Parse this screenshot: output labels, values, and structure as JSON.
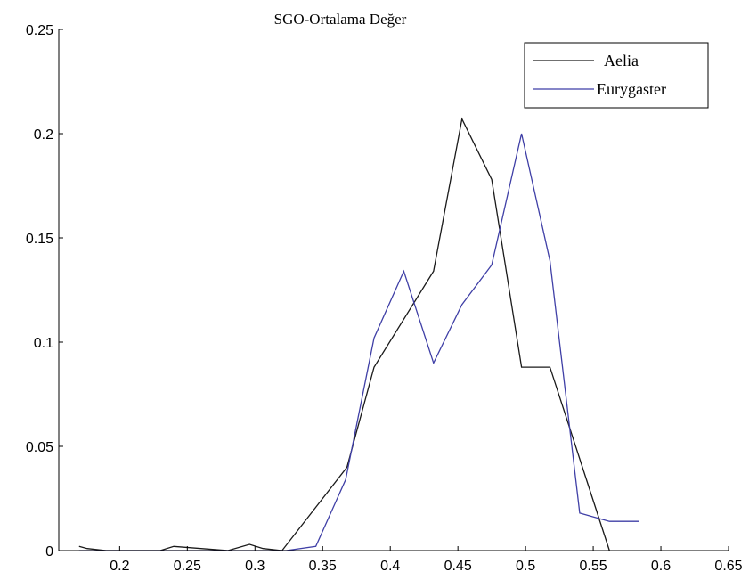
{
  "chart_data": {
    "type": "line",
    "title": "SGO-Ortalama Değer",
    "xlabel": "",
    "ylabel": "",
    "xlim": [
      0.155,
      0.65
    ],
    "ylim": [
      0,
      0.25
    ],
    "xticks": [
      0.2,
      0.25,
      0.3,
      0.35,
      0.4,
      0.45,
      0.5,
      0.55,
      0.6,
      0.65
    ],
    "xtick_labels": [
      "0.2",
      "0.25",
      "0.3",
      "0.35",
      "0.4",
      "0.45",
      "0.5",
      "0.55",
      "0.6",
      "0.65"
    ],
    "yticks": [
      0,
      0.05,
      0.1,
      0.15,
      0.2,
      0.25
    ],
    "ytick_labels": [
      "0",
      "0.05",
      "0.1",
      "0.15",
      "0.2",
      "0.25"
    ],
    "grid": false,
    "legend_position": "top-right",
    "series": [
      {
        "name": "Aelia",
        "color": "#1a1a1a",
        "x": [
          0.17,
          0.176,
          0.19,
          0.23,
          0.24,
          0.28,
          0.296,
          0.306,
          0.32,
          0.368,
          0.388,
          0.432,
          0.453,
          0.475,
          0.497,
          0.518,
          0.54,
          0.562
        ],
        "y": [
          0.002,
          0.001,
          0.0,
          0.0,
          0.002,
          0.0,
          0.003,
          0.001,
          0.0,
          0.04,
          0.088,
          0.134,
          0.207,
          0.178,
          0.088,
          0.088,
          0.044,
          0.0
        ]
      },
      {
        "name": "Eurygaster",
        "color": "#3f3fa6",
        "x": [
          0.17,
          0.3,
          0.323,
          0.345,
          0.367,
          0.388,
          0.41,
          0.432,
          0.453,
          0.475,
          0.497,
          0.518,
          0.54,
          0.562,
          0.584
        ],
        "y": [
          0.0,
          0.0,
          0.0,
          0.002,
          0.034,
          0.102,
          0.134,
          0.09,
          0.118,
          0.137,
          0.2,
          0.139,
          0.018,
          0.014,
          0.014
        ]
      }
    ]
  }
}
